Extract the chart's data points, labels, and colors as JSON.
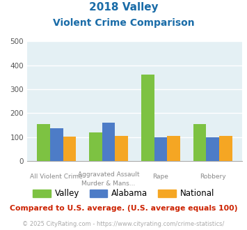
{
  "title_line1": "2018 Valley",
  "title_line2": "Violent Crime Comparison",
  "cat_top": [
    "",
    "Aggravated Assault",
    "",
    ""
  ],
  "cat_bot": [
    "All Violent Crime",
    "Murder & Mans...",
    "Rape",
    "Robbery"
  ],
  "valley": [
    155,
    120,
    360,
    155
  ],
  "alabama": [
    138,
    160,
    100,
    100
  ],
  "national": [
    103,
    104,
    104,
    104
  ],
  "valley_color": "#7dc242",
  "alabama_color": "#4d7cc7",
  "national_color": "#f5a623",
  "bg_color": "#e4f0f4",
  "ylim": [
    0,
    500
  ],
  "yticks": [
    0,
    100,
    200,
    300,
    400,
    500
  ],
  "footnote1": "Compared to U.S. average. (U.S. average equals 100)",
  "footnote2": "© 2025 CityRating.com - https://www.cityrating.com/crime-statistics/",
  "title_color": "#1a6ca8",
  "footnote1_color": "#cc2200",
  "footnote2_color": "#aaaaaa",
  "url_color": "#4472c4",
  "legend_labels": [
    "Valley",
    "Alabama",
    "National"
  ]
}
